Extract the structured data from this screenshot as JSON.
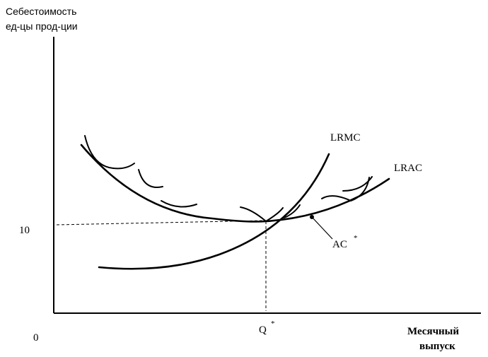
{
  "y_axis_label": [
    "Себестоимость",
    "ед-цы прод-ции"
  ],
  "x_axis_label": [
    "Месячный",
    "выпуск"
  ],
  "origin_label": "0",
  "y_value_label": "10",
  "x_value_label": "Q",
  "x_value_mark": "*",
  "curves": {
    "lrmc": "LRMC",
    "lrac": "LRAC"
  },
  "point_label": "AC",
  "point_mark": "*"
}
